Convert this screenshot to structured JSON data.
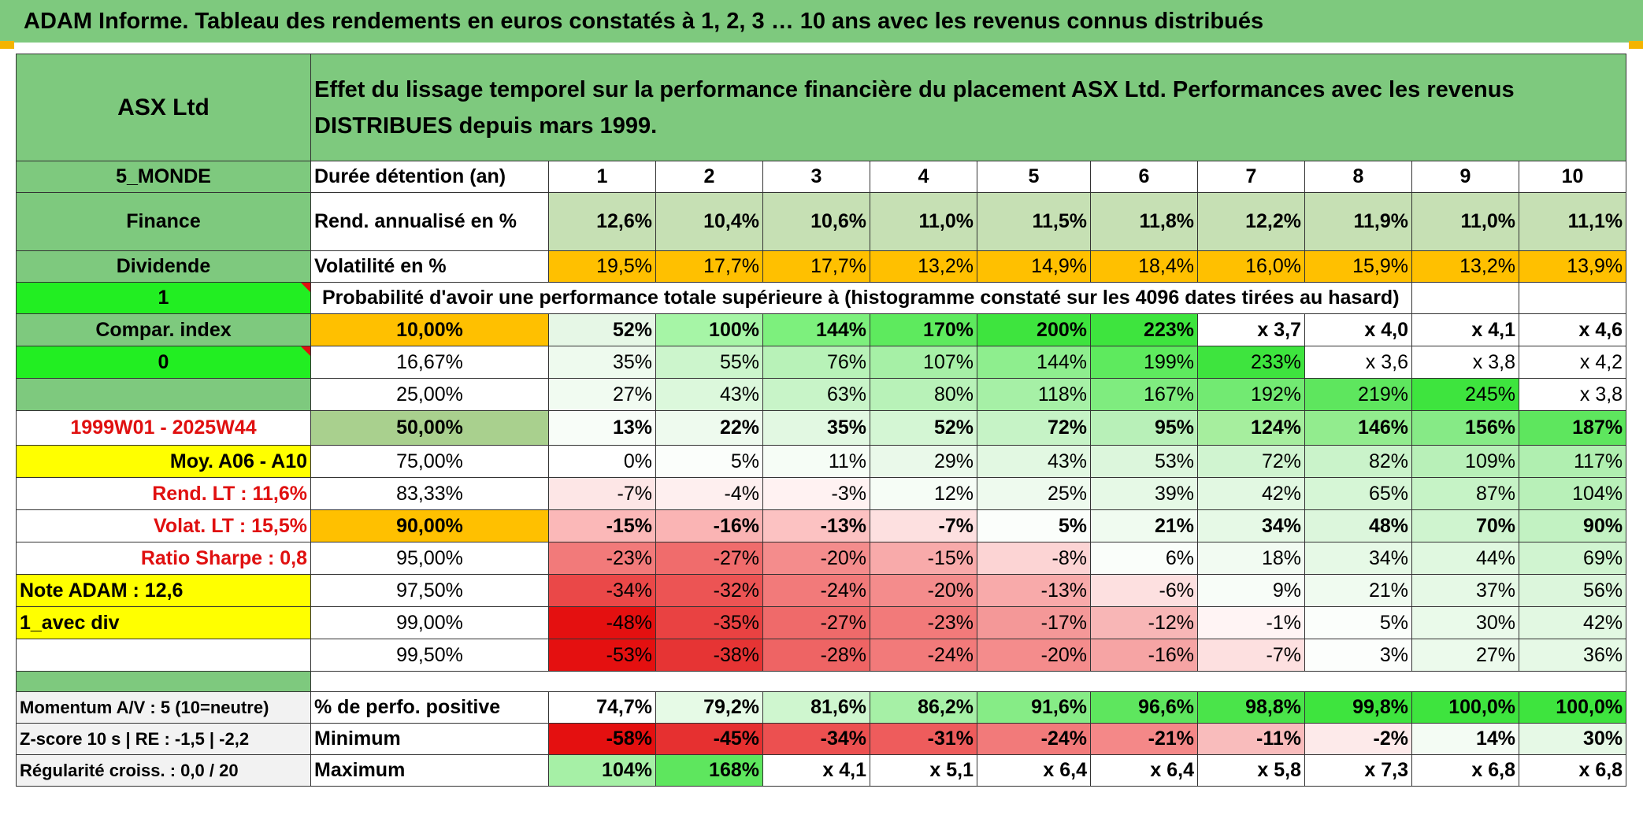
{
  "banner": {
    "title": "ADAM Informe. Tableau des rendements en euros constatés à 1, 2, 3 … 10 ans avec les revenus connus distribués"
  },
  "sidebar": {
    "name": "ASX Ltd",
    "region": "5_MONDE",
    "sector": "Finance",
    "dividend": "Dividende",
    "flag1": "1",
    "compar": "Compar. index",
    "flag0": "0",
    "period": "1999W01 - 2025W44",
    "moy": "Moy. A06 - A10",
    "rend_lt": "Rend. LT :    11,6%",
    "volat_lt": "Volat. LT :    15,5%",
    "sharpe": "Ratio Sharpe :    0,8",
    "note": "Note ADAM : 12,6",
    "avec_div": "1_avec div",
    "momentum": "Momentum A/V : 5 (10=neutre)",
    "zscore": "Z-score 10 s | RE : -1,5 | -2,2",
    "regularite": "Régularité croiss. : 0,0 / 20"
  },
  "header": {
    "description": "Effet du lissage temporel sur la performance financière du placement ASX Ltd. Performances avec les revenus DISTRIBUES depuis mars 1999.",
    "duree_label": "Durée détention (an)",
    "years": [
      "1",
      "2",
      "3",
      "4",
      "5",
      "6",
      "7",
      "8",
      "9",
      "10"
    ]
  },
  "stats": {
    "rend_label": "Rend. annualisé en %",
    "rend": [
      "12,6%",
      "10,4%",
      "10,6%",
      "11,0%",
      "11,5%",
      "11,8%",
      "12,2%",
      "11,9%",
      "11,0%",
      "11,1%"
    ],
    "vol_label": "Volatilité en %",
    "vol": [
      "19,5%",
      "17,7%",
      "17,7%",
      "13,2%",
      "14,9%",
      "18,4%",
      "16,0%",
      "15,9%",
      "13,2%",
      "13,9%"
    ]
  },
  "probability": {
    "caption": "Probabilité d'avoir une performance totale supérieure à (histogramme constaté sur les 4096 dates tirées au hasard)",
    "rows": [
      {
        "p": "10,00%",
        "bold": true,
        "pbg": "#ffc000",
        "v": [
          "52%",
          "100%",
          "144%",
          "170%",
          "200%",
          "223%",
          "x 3,7",
          "x 4,0",
          "x 4,1",
          "x 4,6"
        ],
        "bg": [
          "#e6f7e6",
          "#a6f5a6",
          "#7df07d",
          "#5eea5e",
          "#3ee43e",
          "#3ee43e",
          "#ffffff",
          "#ffffff",
          "#ffffff",
          "#ffffff"
        ]
      },
      {
        "p": "16,67%",
        "bold": false,
        "pbg": "#ffffff",
        "v": [
          "35%",
          "55%",
          "76%",
          "107%",
          "144%",
          "199%",
          "233%",
          "x 3,6",
          "x 3,8",
          "x 4,2"
        ],
        "bg": [
          "#eefaee",
          "#ccf5cc",
          "#b8f2b8",
          "#a6f0a6",
          "#8eee8e",
          "#5eea5e",
          "#3ee43e",
          "#ffffff",
          "#ffffff",
          "#ffffff"
        ]
      },
      {
        "p": "25,00%",
        "bold": false,
        "pbg": "#ffffff",
        "v": [
          "27%",
          "43%",
          "63%",
          "80%",
          "118%",
          "167%",
          "192%",
          "219%",
          "245%",
          "x 3,8"
        ],
        "bg": [
          "#f1fbf1",
          "#dcf8dc",
          "#c8f4c8",
          "#b8f2b8",
          "#a6f0a6",
          "#7fec7f",
          "#72ea72",
          "#5ee65e",
          "#3ee43e",
          "#ffffff"
        ]
      },
      {
        "p": "50,00%",
        "bold": true,
        "pbg": "#a9d08e",
        "big": true,
        "v": [
          "13%",
          "22%",
          "35%",
          "52%",
          "72%",
          "95%",
          "124%",
          "146%",
          "156%",
          "187%"
        ],
        "bg": [
          "#f8fdf8",
          "#eefaee",
          "#e2f8e2",
          "#d4f6d4",
          "#c6f3c6",
          "#b8f0b8",
          "#a6ee9e",
          "#92ec8e",
          "#86ea86",
          "#5ee65e"
        ]
      },
      {
        "p": "75,00%",
        "bold": false,
        "pbg": "#ffffff",
        "v": [
          "0%",
          "5%",
          "11%",
          "29%",
          "43%",
          "53%",
          "72%",
          "82%",
          "109%",
          "117%"
        ],
        "bg": [
          "#ffffff",
          "#fbfefb",
          "#f6fdf6",
          "#eaf9ea",
          "#e2f8e2",
          "#dcf6dc",
          "#d0f4d0",
          "#caf3ca",
          "#b8f0b8",
          "#b0efb0"
        ]
      },
      {
        "p": "83,33%",
        "bold": false,
        "pbg": "#ffffff",
        "v": [
          "-7%",
          "-4%",
          "-3%",
          "12%",
          "25%",
          "39%",
          "42%",
          "65%",
          "87%",
          "104%"
        ],
        "bg": [
          "#fde6e6",
          "#feefef",
          "#fff2f2",
          "#f6fdf6",
          "#eefaee",
          "#e6f9e6",
          "#e2f8e2",
          "#d6f6d6",
          "#c6f3c6",
          "#b8f0b8"
        ]
      },
      {
        "p": "90,00%",
        "bold": true,
        "pbg": "#ffc000",
        "v": [
          "-15%",
          "-16%",
          "-13%",
          "-7%",
          "5%",
          "21%",
          "34%",
          "48%",
          "70%",
          "90%"
        ],
        "bg": [
          "#fbb8b8",
          "#fab4b4",
          "#fcc2c2",
          "#fde0e0",
          "#fbfefb",
          "#f0fbf0",
          "#e6f9e6",
          "#dcf6dc",
          "#cff4cf",
          "#c2f2c2"
        ]
      },
      {
        "p": "95,00%",
        "bold": false,
        "pbg": "#ffffff",
        "v": [
          "-23%",
          "-27%",
          "-20%",
          "-15%",
          "-8%",
          "6%",
          "18%",
          "34%",
          "44%",
          "69%"
        ],
        "bg": [
          "#f27a7a",
          "#f06c6c",
          "#f48c8c",
          "#f8aaaa",
          "#fcd4d4",
          "#fafefa",
          "#f2fbf2",
          "#e6f9e6",
          "#e0f8e0",
          "#d0f4d0"
        ]
      },
      {
        "p": "97,50%",
        "bold": false,
        "pbg": "#ffffff",
        "v": [
          "-34%",
          "-32%",
          "-24%",
          "-20%",
          "-13%",
          "-6%",
          "9%",
          "21%",
          "37%",
          "56%"
        ],
        "bg": [
          "#ea4848",
          "#ec5454",
          "#f27a7a",
          "#f48c8c",
          "#f8aaaa",
          "#fde0e0",
          "#f8fdf8",
          "#f0fbf0",
          "#e6f9e6",
          "#dcf6dc"
        ]
      },
      {
        "p": "99,00%",
        "bold": false,
        "pbg": "#ffffff",
        "v": [
          "-48%",
          "-35%",
          "-27%",
          "-23%",
          "-17%",
          "-12%",
          "-1%",
          "5%",
          "30%",
          "42%"
        ],
        "bg": [
          "#e41010",
          "#e94242",
          "#ef6a6a",
          "#f27a7a",
          "#f49898",
          "#f8b6b6",
          "#fff4f4",
          "#fbfefb",
          "#eafaea",
          "#e2f8e2"
        ]
      },
      {
        "p": "99,50%",
        "bold": false,
        "pbg": "#ffffff",
        "v": [
          "-53%",
          "-38%",
          "-28%",
          "-24%",
          "-20%",
          "-16%",
          "-7%",
          "3%",
          "27%",
          "36%"
        ],
        "bg": [
          "#e41010",
          "#e63434",
          "#ee6464",
          "#f27a7a",
          "#f48c8c",
          "#f6a4a4",
          "#fde0e0",
          "#fcfefc",
          "#ecfaec",
          "#e6f9e6"
        ]
      }
    ]
  },
  "summary": {
    "rows": [
      {
        "label": "% de perfo. positive",
        "v": [
          "74,7%",
          "79,2%",
          "81,6%",
          "86,2%",
          "91,6%",
          "96,6%",
          "98,8%",
          "99,8%",
          "100,0%",
          "100,0%"
        ],
        "bg": [
          "#ffffff",
          "#e6fae6",
          "#cff6cf",
          "#a6f0a6",
          "#86ec86",
          "#5ee65e",
          "#4ae44a",
          "#3ee43e",
          "#3ee43e",
          "#3ee43e"
        ]
      },
      {
        "label": "Minimum",
        "v": [
          "-58%",
          "-45%",
          "-34%",
          "-31%",
          "-24%",
          "-21%",
          "-11%",
          "-2%",
          "14%",
          "30%"
        ],
        "bg": [
          "#e41010",
          "#e63030",
          "#ec5050",
          "#ee5c5c",
          "#f27a7a",
          "#f48888",
          "#f9bcbc",
          "#fdeaea",
          "#f4fcf4",
          "#e6f9e6"
        ]
      },
      {
        "label": "Maximum",
        "v": [
          "104%",
          "168%",
          "x 4,1",
          "x 5,1",
          "x 6,4",
          "x 6,4",
          "x 5,8",
          "x 7,3",
          "x 6,8",
          "x 6,8"
        ],
        "bg": [
          "#a6f0a6",
          "#5ee65e",
          "#ffffff",
          "#ffffff",
          "#ffffff",
          "#ffffff",
          "#ffffff",
          "#ffffff",
          "#ffffff",
          "#ffffff"
        ]
      }
    ]
  },
  "colors": {
    "green_header": "#7ec97e",
    "light_green": "#c6e0b4",
    "bright_green": "#22ee22",
    "orange": "#ffc000",
    "yellow": "#ffff00",
    "red_text": "#e01010"
  }
}
